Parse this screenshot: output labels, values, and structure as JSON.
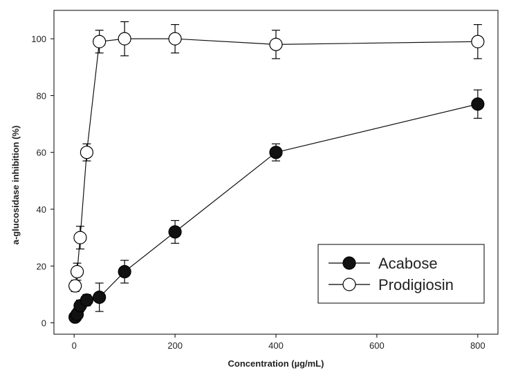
{
  "chart_data": {
    "type": "line",
    "title": "",
    "xlabel": "Concentration (µg/mL)",
    "ylabel": "a-glucosidase inhibition (%)",
    "xlim": [
      -40,
      840
    ],
    "ylim": [
      -4,
      110
    ],
    "xticks": [
      0,
      200,
      400,
      600,
      800
    ],
    "yticks": [
      0,
      20,
      40,
      60,
      80,
      100
    ],
    "grid": false,
    "legend_position": "bottom-right",
    "series": [
      {
        "name": "Acabose",
        "marker": "filled-circle",
        "color": "#111111",
        "points": [
          {
            "x": 2,
            "y": 2,
            "err": 1
          },
          {
            "x": 6,
            "y": 3,
            "err": 2
          },
          {
            "x": 12,
            "y": 6,
            "err": 2
          },
          {
            "x": 25,
            "y": 8,
            "err": 2
          },
          {
            "x": 50,
            "y": 9,
            "err": 5
          },
          {
            "x": 100,
            "y": 18,
            "err": 4
          },
          {
            "x": 200,
            "y": 32,
            "err": 4
          },
          {
            "x": 400,
            "y": 60,
            "err": 3
          },
          {
            "x": 800,
            "y": 77,
            "err": 5
          }
        ]
      },
      {
        "name": "Prodigiosin",
        "marker": "open-circle",
        "color": "#111111",
        "points": [
          {
            "x": 2,
            "y": 13,
            "err": 2
          },
          {
            "x": 6,
            "y": 18,
            "err": 3
          },
          {
            "x": 12,
            "y": 30,
            "err": 4
          },
          {
            "x": 25,
            "y": 60,
            "err": 3
          },
          {
            "x": 50,
            "y": 99,
            "err": 4
          },
          {
            "x": 100,
            "y": 100,
            "err": 6
          },
          {
            "x": 200,
            "y": 100,
            "err": 5
          },
          {
            "x": 400,
            "y": 98,
            "err": 5
          },
          {
            "x": 800,
            "y": 99,
            "err": 6
          }
        ]
      }
    ]
  }
}
